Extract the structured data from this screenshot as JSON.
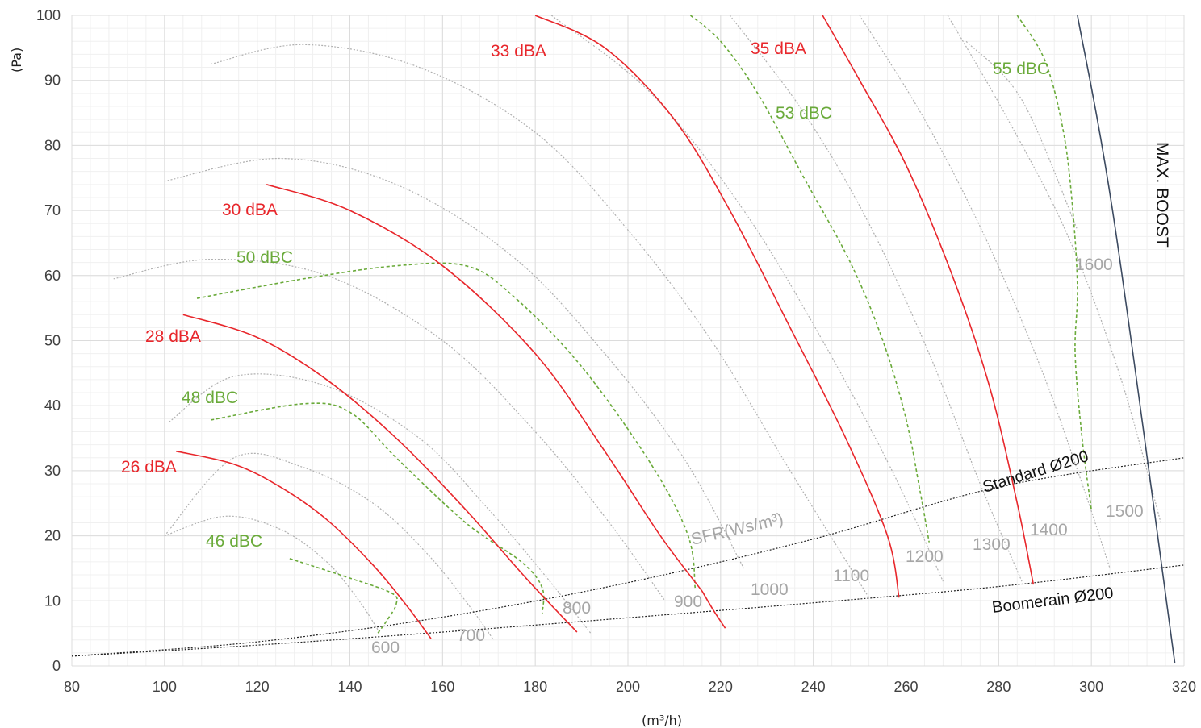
{
  "chart_data": {
    "type": "line",
    "xlabel": "(m³/h)",
    "ylabel": "(Pa)",
    "xlim": [
      80,
      320
    ],
    "ylim": [
      0,
      100
    ],
    "x_ticks": [
      80,
      100,
      120,
      140,
      160,
      180,
      200,
      220,
      240,
      260,
      280,
      300,
      320
    ],
    "y_ticks": [
      0,
      10,
      20,
      30,
      40,
      50,
      60,
      70,
      80,
      90,
      100
    ],
    "grid": "minor and major",
    "colors": {
      "dba": "#e8262b",
      "dbc": "#6aaa3a",
      "fan_speed": "#b0b0b0",
      "system": "#222222",
      "max_boost": "#3c4a60"
    },
    "dba_curves": [
      {
        "label": "26 dBA",
        "points": [
          [
            102.5,
            33
          ],
          [
            115,
            31
          ],
          [
            125,
            27.5
          ],
          [
            135,
            22.5
          ],
          [
            145,
            15.5
          ],
          [
            152,
            9.5
          ],
          [
            157.5,
            4.2
          ]
        ]
      },
      {
        "label": "28 dBA",
        "points": [
          [
            104,
            54
          ],
          [
            120,
            50.5
          ],
          [
            135,
            44
          ],
          [
            150,
            35
          ],
          [
            165,
            24
          ],
          [
            178,
            13.5
          ],
          [
            189,
            5.2
          ]
        ]
      },
      {
        "label": "30 dBA",
        "points": [
          [
            122,
            74
          ],
          [
            140,
            70
          ],
          [
            160,
            61.5
          ],
          [
            180,
            48
          ],
          [
            195,
            33
          ],
          [
            207,
            20
          ],
          [
            216,
            11.5
          ]
        ]
      },
      {
        "label": "33 dBA",
        "points": [
          [
            180,
            100
          ],
          [
            195,
            95
          ],
          [
            210,
            84
          ],
          [
            222,
            70
          ],
          [
            235,
            52
          ],
          [
            247,
            35
          ],
          [
            256,
            20
          ],
          [
            258.5,
            10.5
          ]
        ]
      },
      {
        "label": "35 dBA",
        "points": [
          [
            242,
            100
          ],
          [
            250,
            90
          ],
          [
            260,
            77
          ],
          [
            270,
            60
          ],
          [
            278,
            43
          ],
          [
            284,
            25
          ],
          [
            287.5,
            12.5
          ]
        ]
      },
      {
        "label": "",
        "points": [
          [
            216,
            11.5
          ],
          [
            218.5,
            8.5
          ],
          [
            221,
            5.8
          ]
        ]
      }
    ],
    "dbc_curves": [
      {
        "label": "46 dBC",
        "points": [
          [
            127,
            16.5
          ],
          [
            140,
            13.5
          ],
          [
            149,
            11.2
          ],
          [
            150,
            9.5
          ],
          [
            148,
            7
          ],
          [
            146,
            5
          ]
        ]
      },
      {
        "label": "48 dBC",
        "points": [
          [
            110,
            37.8
          ],
          [
            130,
            40.3
          ],
          [
            140,
            39
          ],
          [
            150,
            32
          ],
          [
            165,
            22
          ],
          [
            177,
            16
          ],
          [
            181.5,
            12
          ],
          [
            181.5,
            8
          ]
        ]
      },
      {
        "label": "50 dBC",
        "points": [
          [
            107,
            56.5
          ],
          [
            130,
            59.5
          ],
          [
            150,
            61.5
          ],
          [
            165,
            61.5
          ],
          [
            175,
            57
          ],
          [
            190,
            46
          ],
          [
            205,
            31
          ],
          [
            213,
            20
          ],
          [
            214.5,
            12
          ]
        ]
      },
      {
        "label": "53 dBC",
        "points": [
          [
            213.5,
            100
          ],
          [
            220,
            96
          ],
          [
            228,
            88
          ],
          [
            238,
            75
          ],
          [
            248,
            62
          ],
          [
            255,
            50
          ],
          [
            260,
            38
          ],
          [
            263,
            27
          ],
          [
            265,
            19
          ]
        ]
      },
      {
        "label": "55 dBC",
        "points": [
          [
            284,
            100
          ],
          [
            290,
            93
          ],
          [
            294,
            82
          ],
          [
            296,
            70
          ],
          [
            297,
            58
          ],
          [
            296.5,
            48
          ],
          [
            298,
            35
          ],
          [
            300,
            24
          ]
        ]
      }
    ],
    "fan_speed_curves": [
      {
        "label": "600",
        "points": [
          [
            100,
            20
          ],
          [
            113,
            23
          ],
          [
            125,
            21
          ],
          [
            135,
            16
          ],
          [
            142,
            10
          ],
          [
            146.5,
            5
          ]
        ]
      },
      {
        "label": "700",
        "points": [
          [
            100,
            20
          ],
          [
            115,
            32
          ],
          [
            130,
            30.5
          ],
          [
            145,
            25
          ],
          [
            157,
            17
          ],
          [
            166,
            9
          ],
          [
            171,
            4
          ]
        ]
      },
      {
        "label": "800",
        "points": [
          [
            101,
            37.5
          ],
          [
            115,
            44.5
          ],
          [
            135,
            43
          ],
          [
            155,
            35
          ],
          [
            170,
            24
          ],
          [
            182,
            14
          ],
          [
            192,
            5
          ]
        ]
      },
      {
        "label": "900",
        "points": [
          [
            89,
            59.5
          ],
          [
            110,
            62.5
          ],
          [
            135,
            60
          ],
          [
            160,
            50
          ],
          [
            180,
            36
          ],
          [
            196,
            22
          ],
          [
            208,
            10
          ]
        ]
      },
      {
        "label": "1000",
        "points": [
          [
            100,
            74.5
          ],
          [
            125,
            78
          ],
          [
            150,
            74
          ],
          [
            175,
            63
          ],
          [
            195,
            48
          ],
          [
            212,
            32
          ],
          [
            225,
            15
          ]
        ]
      },
      {
        "label": "1100",
        "points": [
          [
            110,
            92.5
          ],
          [
            130,
            95.5
          ],
          [
            155,
            92
          ],
          [
            180,
            82
          ],
          [
            200,
            67
          ],
          [
            218,
            50
          ],
          [
            235,
            30
          ],
          [
            252,
            10.5
          ]
        ]
      },
      {
        "label": "1200",
        "points": [
          [
            183.5,
            100
          ],
          [
            205,
            88
          ],
          [
            225,
            70
          ],
          [
            242,
            50
          ],
          [
            257,
            30
          ],
          [
            268,
            13
          ]
        ]
      },
      {
        "label": "1300",
        "points": [
          [
            222,
            100
          ],
          [
            238,
            85
          ],
          [
            252,
            68
          ],
          [
            265,
            48
          ],
          [
            276,
            28
          ],
          [
            285,
            13
          ]
        ]
      },
      {
        "label": "1400",
        "points": [
          [
            250,
            100
          ],
          [
            264,
            84
          ],
          [
            277,
            66
          ],
          [
            289,
            46
          ],
          [
            298,
            28
          ],
          [
            304,
            15
          ]
        ]
      },
      {
        "label": "1500",
        "points": [
          [
            269,
            100
          ],
          [
            282,
            84
          ],
          [
            295,
            66
          ],
          [
            306,
            45
          ],
          [
            315,
            22
          ]
        ]
      },
      {
        "label": "1600",
        "points": [
          [
            273,
            96
          ],
          [
            285,
            87
          ],
          [
            297,
            67
          ]
        ]
      }
    ],
    "system_curves": [
      {
        "label": "Standard Ø200",
        "points": [
          [
            80,
            1.5
          ],
          [
            120,
            3.7
          ],
          [
            160,
            7.5
          ],
          [
            200,
            12.8
          ],
          [
            240,
            19.5
          ],
          [
            280,
            27.5
          ],
          [
            320,
            32
          ]
        ]
      },
      {
        "label": "Boomerain Ø200",
        "points": [
          [
            80,
            1.5
          ],
          [
            120,
            3.2
          ],
          [
            160,
            5.2
          ],
          [
            200,
            7.4
          ],
          [
            240,
            9.7
          ],
          [
            280,
            12.2
          ],
          [
            320,
            15.5
          ]
        ]
      }
    ],
    "max_boost": {
      "label": "MAX. BOOST",
      "points": [
        [
          297,
          100
        ],
        [
          305,
          68
        ],
        [
          318,
          0.5
        ]
      ]
    },
    "sfr_label": "SFR(Ws/m³)"
  }
}
